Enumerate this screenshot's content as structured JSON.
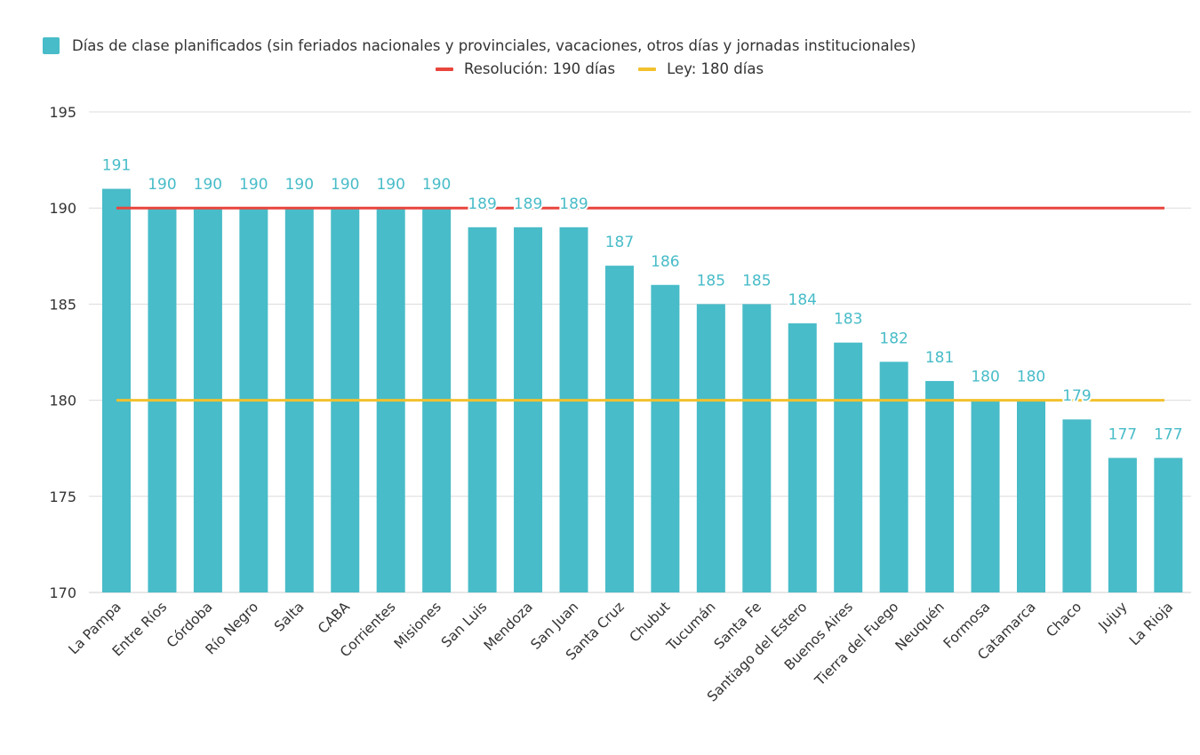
{
  "chart_data": {
    "type": "bar",
    "categories": [
      "La Pampa",
      "Entre Ríos",
      "Córdoba",
      "Río Negro",
      "Salta",
      "CABA",
      "Corrientes",
      "Misiones",
      "San Luis",
      "Mendoza",
      "San Juan",
      "Santa Cruz",
      "Chubut",
      "Tucumán",
      "Santa Fe",
      "Santiago del Estero",
      "Buenos Aires",
      "Tierra del Fuego",
      "Neuquén",
      "Formosa",
      "Catamarca",
      "Chaco",
      "Jujuy",
      "La Rioja"
    ],
    "series": [
      {
        "name": "Días de clase planificados (sin feriados nacionales y provinciales, vacaciones, otros días y jornadas institucionales)",
        "color": "#48bcc8",
        "values": [
          191,
          190,
          190,
          190,
          190,
          190,
          190,
          190,
          189,
          189,
          189,
          187,
          186,
          185,
          185,
          184,
          183,
          182,
          181,
          180,
          180,
          179,
          177,
          177
        ]
      }
    ],
    "reference_lines": [
      {
        "name": "Resolución: 190 días",
        "value": 190,
        "color": "#e8453c"
      },
      {
        "name": "Ley: 180 días",
        "value": 180,
        "color": "#f2c12e"
      }
    ],
    "ylim": [
      170,
      195
    ],
    "yticks": [
      170,
      175,
      180,
      185,
      190,
      195
    ],
    "grid": true,
    "legend_position": "top",
    "data_labels": true
  }
}
